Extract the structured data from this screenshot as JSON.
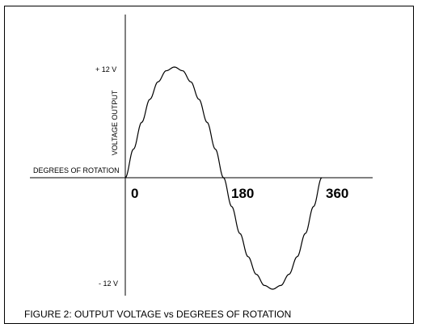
{
  "chart_data": {
    "type": "line",
    "caption": "FIGURE 2: OUTPUT VOLTAGE vs DEGREES OF ROTATION",
    "xlabel": "DEGREES OF ROTATION",
    "ylabel": "VOLTAGE OUTPUT",
    "x_ticks": [
      "0",
      "180",
      "360"
    ],
    "y_ticks": [
      "+ 12 V",
      "- 12 V"
    ],
    "xlim": [
      0,
      360
    ],
    "ylim": [
      -12,
      12
    ],
    "grid": false,
    "series": [
      {
        "x": [
          0,
          15,
          30,
          45,
          60,
          75,
          90,
          105,
          120,
          135,
          150,
          165,
          180,
          195,
          210,
          225,
          240,
          255,
          270,
          285,
          300,
          315,
          330,
          345,
          360
        ],
        "values": [
          0,
          3.1,
          6,
          8.5,
          10.4,
          11.6,
          12,
          11.6,
          10.4,
          8.5,
          6,
          3.1,
          0,
          -3.1,
          -6,
          -8.5,
          -10.4,
          -11.6,
          -12,
          -11.6,
          -10.4,
          -8.5,
          -6,
          -3.1,
          0
        ]
      }
    ]
  }
}
